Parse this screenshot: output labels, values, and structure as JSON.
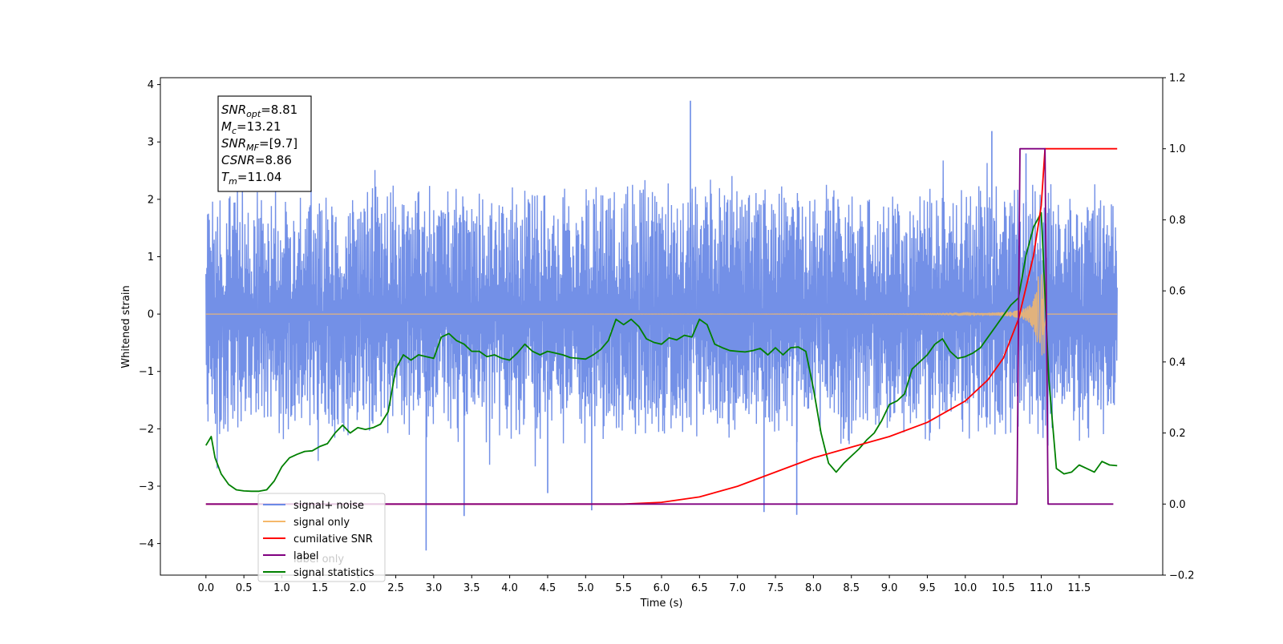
{
  "chart_data": {
    "type": "line",
    "xlabel": "Time (s)",
    "ylabel": "Whitened strain",
    "xlim": [
      -0.6,
      12.6
    ],
    "ylim": [
      -4.55,
      4.12
    ],
    "y2lim": [
      -0.2,
      1.2
    ],
    "x_ticks": [
      "0.0",
      "0.5",
      "1.0",
      "1.5",
      "2.0",
      "2.5",
      "3.0",
      "3.5",
      "4.0",
      "4.5",
      "5.0",
      "5.5",
      "6.0",
      "6.5",
      "7.0",
      "7.5",
      "8.0",
      "8.5",
      "9.0",
      "9.5",
      "10.0",
      "10.5",
      "11.0",
      "11.5"
    ],
    "y_ticks": [
      "4",
      "3",
      "2",
      "1",
      "0",
      "−1",
      "−2",
      "−3",
      "−4"
    ],
    "y2_ticks": [
      "1.2",
      "1.0",
      "0.8",
      "0.6",
      "0.4",
      "0.2",
      "0.0",
      "−0.2"
    ],
    "annotation": {
      "lines": [
        {
          "sym": "SNR",
          "sub": "opt",
          "val": "=8.81"
        },
        {
          "sym": "M",
          "sub": "c",
          "val": "=13.21"
        },
        {
          "sym": "SNR",
          "sub": "MF",
          "val": "=[9.7]"
        },
        {
          "sym": "CSNR",
          "sub": "",
          "val": "=8.86"
        },
        {
          "sym": "T",
          "sub": "m",
          "val": "=11.04"
        }
      ]
    },
    "legend": {
      "placement": "lower-left",
      "entries": [
        {
          "label": "signal+ noise",
          "color": "#6b8ae6"
        },
        {
          "label": "signal only",
          "color": "#f5b86a"
        },
        {
          "label": "cumilative SNR",
          "color": "#ff0000"
        },
        {
          "label": "label",
          "color": "#800080"
        },
        {
          "label": "signal statistics",
          "color": "#008000"
        }
      ],
      "hidden_text": "label only"
    },
    "series": [
      {
        "name": "signal+ noise",
        "axis": "left",
        "color": "#6b8ae6",
        "x_range": [
          0.0,
          12.0
        ],
        "envelope": "noise band roughly -2.3 to 2.5, extreme spikes",
        "spikes": [
          {
            "x": 6.38,
            "y": 3.72
          },
          {
            "x": 10.35,
            "y": 3.19
          },
          {
            "x": 2.9,
            "y": -4.12
          },
          {
            "x": 3.4,
            "y": -3.52
          },
          {
            "x": 5.08,
            "y": -3.42
          },
          {
            "x": 7.78,
            "y": -3.5
          },
          {
            "x": 7.35,
            "y": -3.45
          },
          {
            "x": 4.5,
            "y": -3.12
          },
          {
            "x": 10.8,
            "y": 2.8
          }
        ]
      },
      {
        "name": "signal only",
        "axis": "left",
        "color": "#f5b86a",
        "chirp_start": 6.0,
        "merger": 11.04,
        "peak_amplitude": 0.72
      },
      {
        "name": "cumilative SNR",
        "axis": "right",
        "color": "#ff0000",
        "x": [
          0.0,
          5.5,
          6.0,
          6.5,
          7.0,
          7.5,
          8.0,
          8.5,
          9.0,
          9.5,
          10.0,
          10.3,
          10.5,
          10.7,
          10.9,
          11.0,
          11.05,
          12.0
        ],
        "values": [
          0.0,
          0.0,
          0.005,
          0.02,
          0.05,
          0.09,
          0.13,
          0.16,
          0.19,
          0.23,
          0.29,
          0.35,
          0.41,
          0.52,
          0.7,
          0.84,
          1.0,
          1.0
        ]
      },
      {
        "name": "label",
        "axis": "right",
        "color": "#800080",
        "x": [
          0.0,
          10.68,
          10.72,
          11.05,
          11.09,
          11.95
        ],
        "values": [
          0.0,
          0.0,
          1.0,
          1.0,
          0.0,
          0.0
        ]
      },
      {
        "name": "signal statistics",
        "axis": "right",
        "color": "#008000",
        "x": [
          0.0,
          0.07,
          0.12,
          0.2,
          0.3,
          0.4,
          0.5,
          0.6,
          0.7,
          0.8,
          0.9,
          1.0,
          1.1,
          1.2,
          1.3,
          1.4,
          1.5,
          1.6,
          1.7,
          1.8,
          1.9,
          2.0,
          2.1,
          2.2,
          2.3,
          2.4,
          2.5,
          2.6,
          2.7,
          2.8,
          2.9,
          3.0,
          3.1,
          3.2,
          3.3,
          3.4,
          3.5,
          3.6,
          3.7,
          3.8,
          3.9,
          4.0,
          4.1,
          4.2,
          4.3,
          4.4,
          4.5,
          4.6,
          4.7,
          4.8,
          4.9,
          5.0,
          5.1,
          5.2,
          5.3,
          5.4,
          5.5,
          5.6,
          5.7,
          5.8,
          5.9,
          6.0,
          6.1,
          6.2,
          6.3,
          6.4,
          6.5,
          6.6,
          6.7,
          6.8,
          6.9,
          7.0,
          7.1,
          7.2,
          7.3,
          7.4,
          7.5,
          7.6,
          7.7,
          7.8,
          7.9,
          8.0,
          8.1,
          8.2,
          8.3,
          8.4,
          8.5,
          8.6,
          8.7,
          8.8,
          8.9,
          9.0,
          9.1,
          9.2,
          9.3,
          9.4,
          9.5,
          9.6,
          9.7,
          9.8,
          9.9,
          10.0,
          10.1,
          10.2,
          10.3,
          10.4,
          10.5,
          10.6,
          10.7,
          10.8,
          10.9,
          11.0,
          11.1,
          11.2,
          11.3,
          11.4,
          11.5,
          11.6,
          11.7,
          11.8,
          11.9,
          12.0
        ],
        "values": [
          0.165,
          0.19,
          0.13,
          0.085,
          0.055,
          0.04,
          0.037,
          0.036,
          0.036,
          0.04,
          0.065,
          0.105,
          0.13,
          0.14,
          0.148,
          0.15,
          0.162,
          0.17,
          0.2,
          0.222,
          0.2,
          0.215,
          0.21,
          0.215,
          0.225,
          0.26,
          0.38,
          0.42,
          0.405,
          0.42,
          0.415,
          0.41,
          0.47,
          0.48,
          0.46,
          0.45,
          0.43,
          0.43,
          0.415,
          0.42,
          0.41,
          0.405,
          0.425,
          0.45,
          0.43,
          0.42,
          0.43,
          0.425,
          0.42,
          0.412,
          0.41,
          0.408,
          0.42,
          0.435,
          0.46,
          0.52,
          0.505,
          0.52,
          0.5,
          0.465,
          0.455,
          0.45,
          0.468,
          0.462,
          0.475,
          0.47,
          0.52,
          0.505,
          0.45,
          0.44,
          0.432,
          0.43,
          0.428,
          0.432,
          0.438,
          0.42,
          0.44,
          0.42,
          0.44,
          0.442,
          0.43,
          0.325,
          0.2,
          0.115,
          0.09,
          0.115,
          0.135,
          0.155,
          0.18,
          0.2,
          0.235,
          0.28,
          0.29,
          0.31,
          0.38,
          0.4,
          0.42,
          0.45,
          0.465,
          0.43,
          0.41,
          0.415,
          0.425,
          0.44,
          0.47,
          0.5,
          0.53,
          0.56,
          0.58,
          0.7,
          0.78,
          0.82,
          0.35,
          0.1,
          0.085,
          0.09,
          0.11,
          0.1,
          0.09,
          0.12,
          0.11,
          0.108
        ]
      }
    ]
  }
}
